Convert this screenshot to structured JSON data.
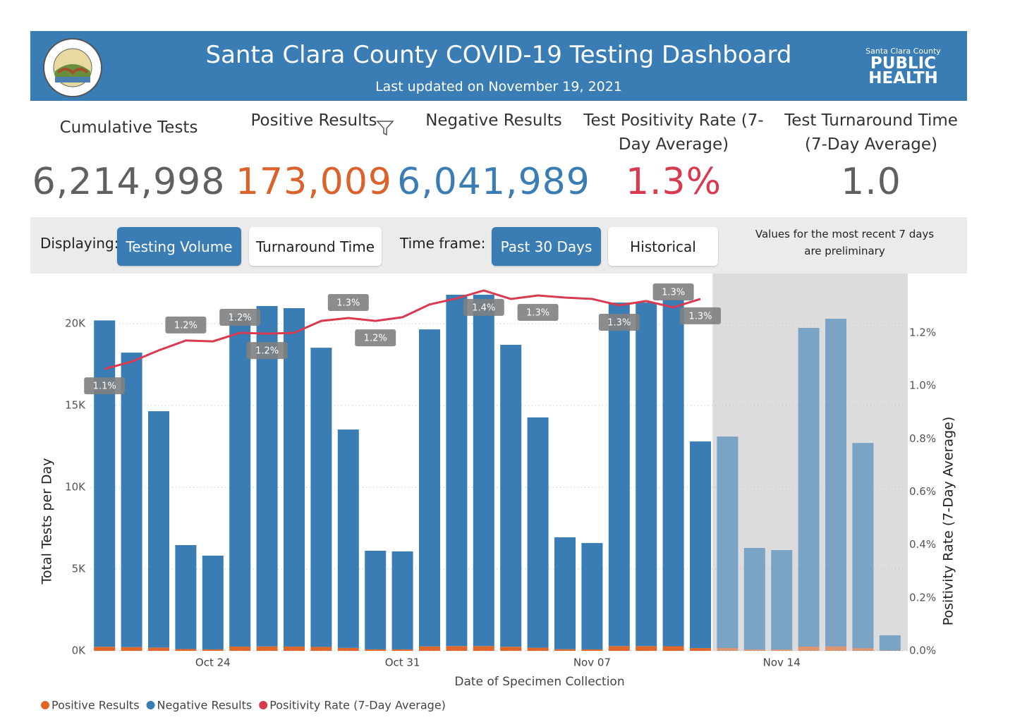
{
  "header": {
    "title": "Santa Clara County COVID-19 Testing Dashboard",
    "subtitle": "Last updated on November 19, 2021",
    "logo_text": [
      "Santa Clara County",
      "PUBLIC",
      "HEALTH"
    ]
  },
  "kpis": [
    {
      "label": "Cumulative Tests",
      "value": "6,214,998",
      "color": "#606060"
    },
    {
      "label": "Positive Results",
      "value": "173,009",
      "color": "#d9632a"
    },
    {
      "label": "Negative Results",
      "value": "6,041,989",
      "color": "#3a7db4"
    },
    {
      "label": "Test Positivity Rate (7-Day Average)",
      "value": "1.3%",
      "color": "#d93a50"
    },
    {
      "label": "Test Turnaround Time (7-Day Average)",
      "value": "1.0",
      "color": "#606060"
    }
  ],
  "controls": {
    "displaying_label": "Displaying:",
    "display_options": [
      "Testing Volume",
      "Turnaround Time"
    ],
    "display_selected": 0,
    "timeframe_label": "Time frame:",
    "timeframe_options": [
      "Past 30 Days",
      "Historical"
    ],
    "timeframe_selected": 0,
    "note": "Values for the most recent 7 days are preliminary"
  },
  "chart_data": {
    "type": "bar",
    "stacked": true,
    "categories": [
      null,
      null,
      null,
      null,
      "Oct 24",
      null,
      null,
      null,
      null,
      null,
      null,
      "Oct 31",
      null,
      null,
      null,
      null,
      null,
      null,
      "Nov 07",
      null,
      null,
      null,
      null,
      null,
      null,
      "Nov 14",
      null,
      null,
      null,
      null
    ],
    "series": [
      {
        "name": "Positive Results",
        "color": "#e0672a",
        "values": [
          250,
          230,
          200,
          110,
          90,
          260,
          270,
          260,
          240,
          180,
          90,
          90,
          270,
          290,
          290,
          250,
          190,
          100,
          90,
          290,
          290,
          280,
          170,
          170,
          80,
          80,
          260,
          270,
          160,
          20
        ]
      },
      {
        "name": "Negative Results",
        "color": "#3a7db4",
        "values": [
          19950,
          18000,
          14450,
          6355,
          5730,
          20130,
          20810,
          20690,
          18290,
          13350,
          6030,
          5990,
          19380,
          21480,
          21480,
          18460,
          14080,
          6840,
          6500,
          21000,
          21000,
          21180,
          12630,
          12930,
          6210,
          6080,
          19480,
          20030,
          12550,
          930
        ]
      },
      {
        "name": "Positivity Rate (7-Day Average)",
        "type": "line",
        "axis": "y2",
        "color": "#d93a50",
        "values": [
          1.064,
          1.091,
          1.134,
          1.171,
          1.168,
          1.2,
          1.197,
          1.2,
          1.245,
          1.256,
          1.245,
          1.259,
          1.307,
          1.33,
          1.36,
          1.328,
          1.341,
          1.333,
          1.328,
          1.304,
          1.32,
          1.296,
          1.328,
          null,
          null,
          null,
          null,
          null,
          null,
          null
        ],
        "value_labels": [
          "1.1%",
          null,
          null,
          "1.2%",
          null,
          "1.2%",
          "1.2%",
          null,
          null,
          "1.3%",
          "1.2%",
          null,
          null,
          null,
          "1.4%",
          null,
          "1.3%",
          null,
          null,
          "1.3%",
          null,
          "1.3%",
          "1.3%",
          null,
          null,
          null,
          null,
          null,
          null,
          null
        ]
      }
    ],
    "xlabel": "Date of Specimen Collection",
    "ylabel": "Total Tests per Day",
    "y2label": "Positivity Rate (7-Day Average)",
    "ylim": [
      0,
      22760
    ],
    "yticks": [
      {
        "value": 0,
        "label": "0K"
      },
      {
        "value": 5000,
        "label": "5K"
      },
      {
        "value": 10000,
        "label": "10K"
      },
      {
        "value": 15000,
        "label": "15K"
      },
      {
        "value": 20000,
        "label": "20K"
      }
    ],
    "y2lim": [
      0,
      1.405
    ],
    "y2ticks": [
      {
        "value": 0,
        "label": "0.0%"
      },
      {
        "value": 0.2,
        "label": "0.2%"
      },
      {
        "value": 0.4,
        "label": "0.4%"
      },
      {
        "value": 0.6,
        "label": "0.6%"
      },
      {
        "value": 0.8,
        "label": "0.8%"
      },
      {
        "value": 1.0,
        "label": "1.0%"
      },
      {
        "value": 1.2,
        "label": "1.2%"
      }
    ],
    "grid": true,
    "legend": "bottom-left",
    "preliminary_start_index": 23
  }
}
